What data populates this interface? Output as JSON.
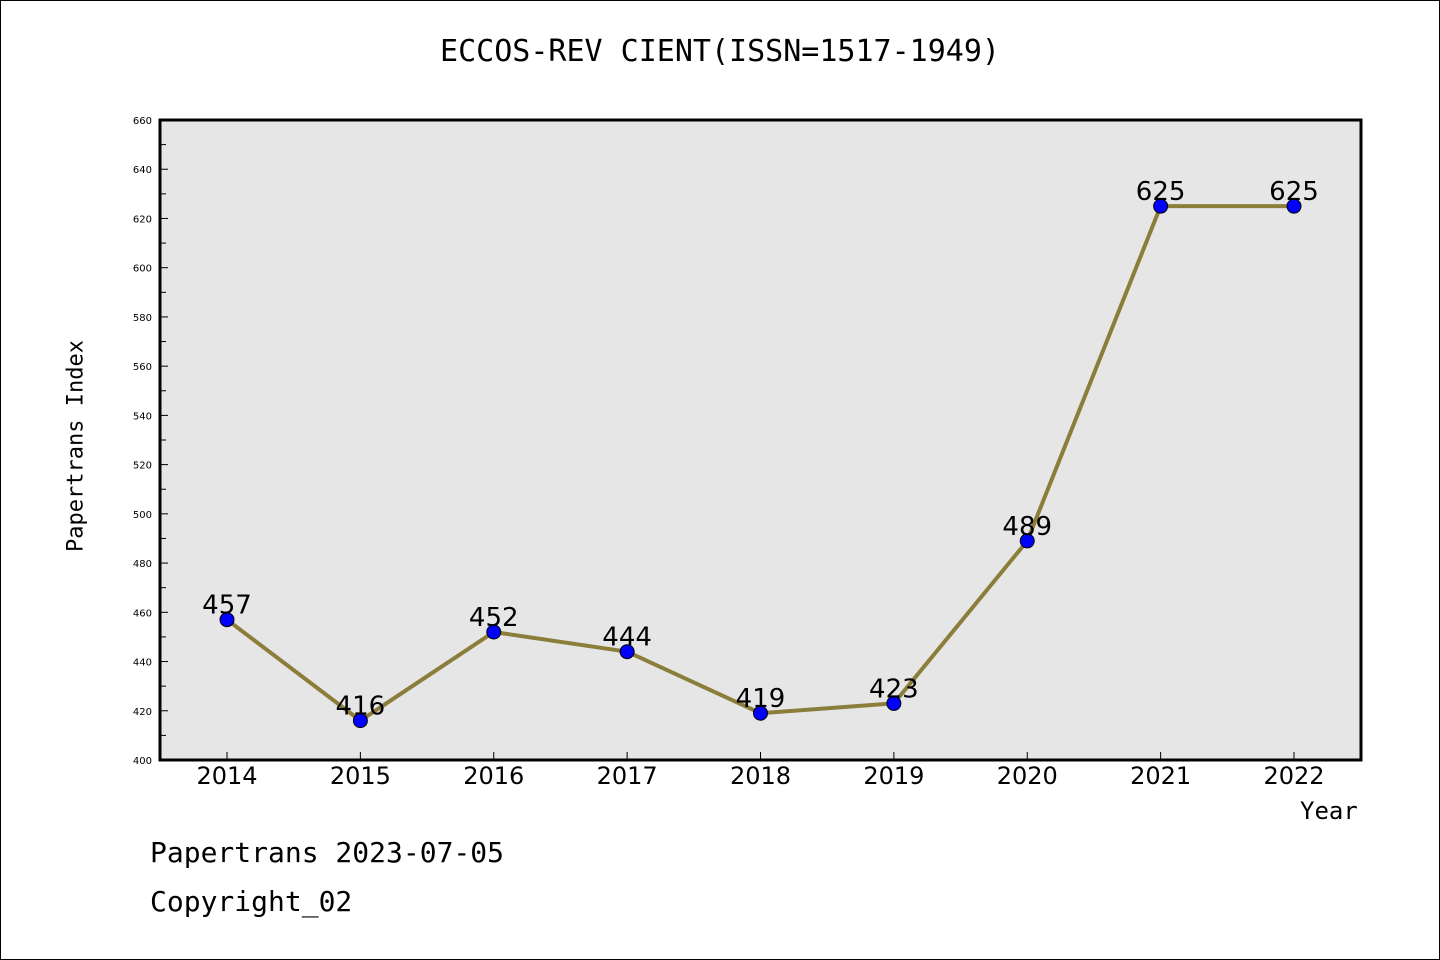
{
  "chart_data": {
    "type": "line",
    "title": "ECCOS-REV CIENT(ISSN=1517-1949)",
    "xlabel": "Year",
    "ylabel": "Papertrans Index",
    "categories": [
      "2014",
      "2015",
      "2016",
      "2017",
      "2018",
      "2019",
      "2020",
      "2021",
      "2022"
    ],
    "series": [
      {
        "values": [
          457,
          416,
          452,
          444,
          419,
          423,
          489,
          625,
          625
        ]
      }
    ],
    "ylim": [
      400,
      660
    ],
    "yticks": [
      400,
      420,
      440,
      460,
      480,
      500,
      520,
      540,
      560,
      580,
      600,
      620,
      640,
      660
    ],
    "data_labels": [
      "457",
      "416",
      "452",
      "444",
      "419",
      "423",
      "489",
      "625",
      "625"
    ],
    "grid": false,
    "colors": {
      "plot_background": "#e6e6e6",
      "line": "#8b7d3a",
      "marker": "#0000ff"
    }
  },
  "footer": {
    "line1": "Papertrans 2023-07-05",
    "line2": "Copyright_02"
  }
}
